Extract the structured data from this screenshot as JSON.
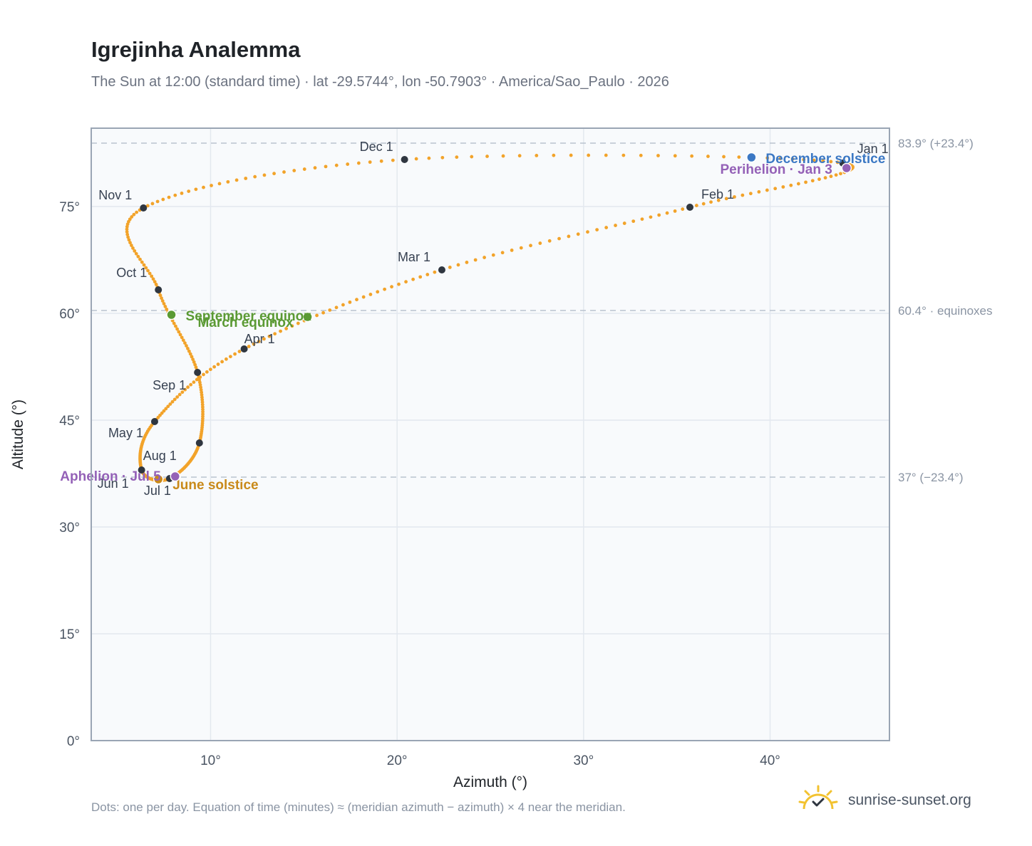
{
  "title": "Igrejinha Analemma",
  "subtitle": "The Sun at 12:00 (standard time) · lat -29.5744°, lon -50.7903° · America/Sao_Paulo · 2026",
  "footnote": "Dots: one per day. Equation of time (minutes) ≈ (meridian azimuth − azimuth) × 4 near the meridian.",
  "brand": {
    "name": "sunrise-sunset.org",
    "icon": "sun-logo-icon"
  },
  "colors": {
    "path": "#f2a32a",
    "month_marker": "#2f3640",
    "solstice_june": "#c98a1a",
    "solstice_december": "#3b78c4",
    "equinox": "#5b9a34",
    "apsis": "#9461b7",
    "plot_bg": "#f8fafc",
    "grid": "#e3e8ef",
    "reference_line": "#b9c3cf"
  },
  "chart_data": {
    "type": "scatter",
    "xlabel": "Azimuth (°)",
    "ylabel": "Altitude (°)",
    "xlim": [
      3.6,
      46.4
    ],
    "ylim": [
      0,
      86
    ],
    "x_ticks": [
      10,
      20,
      30,
      40
    ],
    "x_tick_labels": [
      "10°",
      "20°",
      "30°",
      "40°"
    ],
    "y_ticks": [
      0,
      15,
      30,
      45,
      60,
      75
    ],
    "y_tick_labels": [
      "0°",
      "15°",
      "30°",
      "45°",
      "60°",
      "75°"
    ],
    "grid": true,
    "reference_lines": [
      {
        "y": 83.9,
        "label": "83.9° (+23.4°)"
      },
      {
        "y": 60.4,
        "label": "60.4° · equinoxes"
      },
      {
        "y": 37.0,
        "label": "37° (−23.4°)"
      }
    ],
    "month_markers": [
      {
        "label": "Jan 1",
        "x": 43.9,
        "y": 81.1
      },
      {
        "label": "Feb 1",
        "x": 35.7,
        "y": 74.9
      },
      {
        "label": "Mar 1",
        "x": 22.4,
        "y": 66.1
      },
      {
        "label": "Apr 1",
        "x": 11.8,
        "y": 55.0
      },
      {
        "label": "May 1",
        "x": 7.0,
        "y": 44.8
      },
      {
        "label": "Jun 1",
        "x": 6.3,
        "y": 38.0
      },
      {
        "label": "Jul 1",
        "x": 7.8,
        "y": 36.8
      },
      {
        "label": "Aug 1",
        "x": 9.4,
        "y": 41.8
      },
      {
        "label": "Sep 1",
        "x": 9.3,
        "y": 51.7
      },
      {
        "label": "Oct 1",
        "x": 7.2,
        "y": 63.3
      },
      {
        "label": "Nov 1",
        "x": 6.4,
        "y": 74.8
      },
      {
        "label": "Dec 1",
        "x": 20.4,
        "y": 81.6
      }
    ],
    "events": [
      {
        "label": "December solstice",
        "x": 39.0,
        "y": 81.9,
        "kind": "solstice_december"
      },
      {
        "label": "Perihelion · Jan 3",
        "x": 44.1,
        "y": 80.4,
        "kind": "apsis"
      },
      {
        "label": "March equinox",
        "x": 15.2,
        "y": 59.5,
        "kind": "equinox"
      },
      {
        "label": "September equinox",
        "x": 7.9,
        "y": 59.8,
        "kind": "equinox"
      },
      {
        "label": "June solstice",
        "x": 7.2,
        "y": 36.7,
        "kind": "solstice_june"
      },
      {
        "label": "Aphelion · Jul 5",
        "x": 8.1,
        "y": 37.1,
        "kind": "apsis"
      }
    ]
  }
}
